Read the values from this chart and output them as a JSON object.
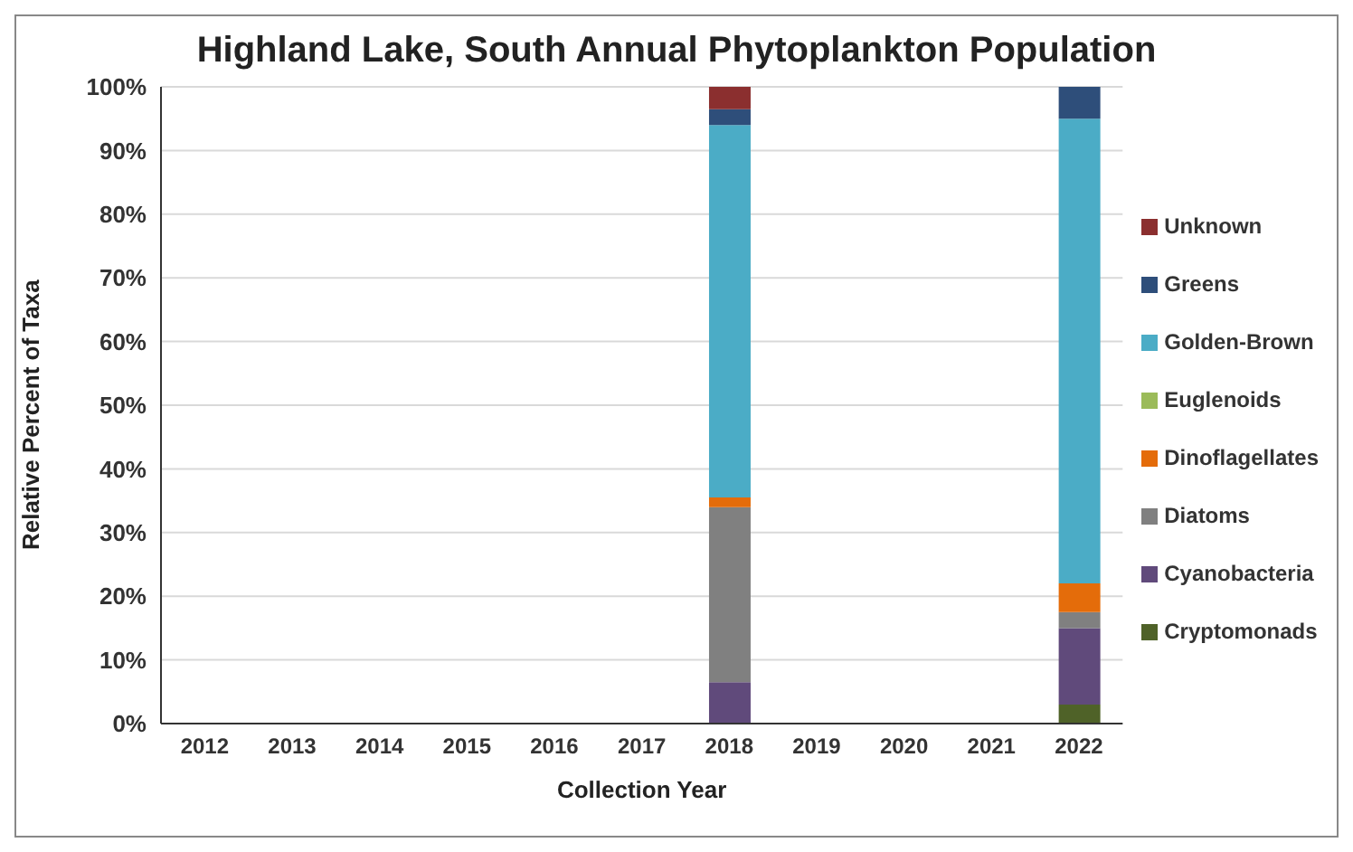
{
  "chart_data": {
    "type": "bar",
    "title": "Highland Lake, South Annual Phytoplankton Population",
    "xlabel": "Collection Year",
    "ylabel": "Relative Percent of Taxa",
    "categories": [
      "2012",
      "2013",
      "2014",
      "2015",
      "2016",
      "2017",
      "2018",
      "2019",
      "2020",
      "2021",
      "2022"
    ],
    "stacked": true,
    "ylim": [
      0,
      100
    ],
    "yticks": [
      {
        "value": 0,
        "label": "0%"
      },
      {
        "value": 10,
        "label": "10%"
      },
      {
        "value": 20,
        "label": "20%"
      },
      {
        "value": 30,
        "label": "30%"
      },
      {
        "value": 40,
        "label": "40%"
      },
      {
        "value": 50,
        "label": "50%"
      },
      {
        "value": 60,
        "label": "60%"
      },
      {
        "value": 70,
        "label": "70%"
      },
      {
        "value": 80,
        "label": "80%"
      },
      {
        "value": 90,
        "label": "90%"
      },
      {
        "value": 100,
        "label": "100%"
      }
    ],
    "grid": "y",
    "legend": "right",
    "series": [
      {
        "name": "Cryptomonads",
        "color": "#4f6228",
        "values": [
          null,
          null,
          null,
          null,
          null,
          null,
          0,
          null,
          null,
          null,
          3
        ]
      },
      {
        "name": "Cyanobacteria",
        "color": "#604a7b",
        "values": [
          null,
          null,
          null,
          null,
          null,
          null,
          6.5,
          null,
          null,
          null,
          12
        ]
      },
      {
        "name": "Diatoms",
        "color": "#808080",
        "values": [
          null,
          null,
          null,
          null,
          null,
          null,
          27.5,
          null,
          null,
          null,
          2.5
        ]
      },
      {
        "name": "Dinoflagellates",
        "color": "#e46c0a",
        "values": [
          null,
          null,
          null,
          null,
          null,
          null,
          1.5,
          null,
          null,
          null,
          4.5
        ]
      },
      {
        "name": "Euglenoids",
        "color": "#9bbb59",
        "values": [
          null,
          null,
          null,
          null,
          null,
          null,
          0,
          null,
          null,
          null,
          0
        ]
      },
      {
        "name": "Golden-Brown",
        "color": "#4bacc6",
        "values": [
          null,
          null,
          null,
          null,
          null,
          null,
          58.5,
          null,
          null,
          null,
          73
        ]
      },
      {
        "name": "Greens",
        "color": "#2e4e7a",
        "values": [
          null,
          null,
          null,
          null,
          null,
          null,
          2.5,
          null,
          null,
          null,
          5
        ]
      },
      {
        "name": "Unknown",
        "color": "#8b2f2f",
        "values": [
          null,
          null,
          null,
          null,
          null,
          null,
          3.5,
          null,
          null,
          null,
          0
        ]
      }
    ]
  }
}
